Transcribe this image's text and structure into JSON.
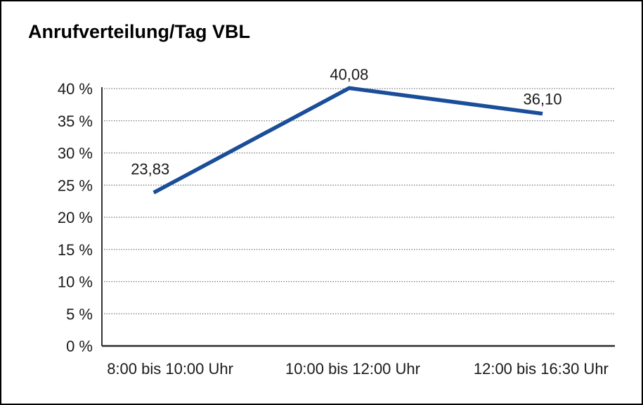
{
  "chart_data": {
    "type": "line",
    "title": "Anrufverteilung/Tag VBL",
    "categories": [
      "8:00 bis 10:00 Uhr",
      "10:00 bis 12:00 Uhr",
      "12:00 bis 16:30 Uhr"
    ],
    "series": [
      {
        "values": [
          23.83,
          40.08,
          36.1
        ],
        "point_labels": [
          "23,83",
          "40,08",
          "36,10"
        ],
        "color": "#1a4e9a"
      }
    ],
    "xlabel": "",
    "ylabel": "",
    "ylim": [
      0,
      40
    ],
    "y_tick_step": 5,
    "y_tick_labels": [
      "0 %",
      "5 %",
      "10 %",
      "15 %",
      "20 %",
      "25 %",
      "30 %",
      "35 %",
      "40 %"
    ],
    "grid": "horizontal-dotted",
    "gridline_color": "#666666",
    "axis_color": "#2b2b2b",
    "legend": "none"
  }
}
